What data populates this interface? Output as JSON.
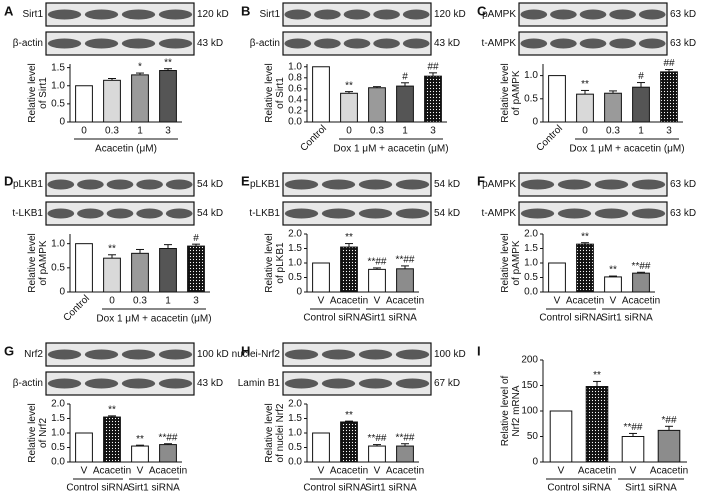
{
  "chart_data": [
    {
      "type": "bar",
      "panel": "A",
      "blots": [
        {
          "label": "Sirt1",
          "size": "120 kD"
        },
        {
          "label": "β-actin",
          "size": "43 kD"
        }
      ],
      "ylabel": [
        "Relative level",
        "of Sirt1"
      ],
      "categories": [
        "0",
        "0.3",
        "1",
        "3"
      ],
      "values": [
        1.0,
        1.15,
        1.3,
        1.42
      ],
      "errors": [
        0,
        0.05,
        0.05,
        0.05
      ],
      "sig": [
        "",
        "",
        "*",
        "**"
      ],
      "colors": [
        "#ffffff",
        "#d9d9d9",
        "#9a9a9a",
        "#555555"
      ],
      "dotted": [
        false,
        false,
        false,
        false
      ],
      "xlabel": "Acacetin (μM)",
      "ylim": [
        0,
        1.6
      ],
      "yticks": [
        0,
        0.5,
        {
          "value": 1,
          "label": "1.0"
        },
        1.5
      ]
    },
    {
      "type": "bar",
      "panel": "B",
      "blots": [
        {
          "label": "Sirt1",
          "size": "120 kD"
        },
        {
          "label": "β-actin",
          "size": "43 kD"
        }
      ],
      "ylabel": [
        "Relative level",
        "of Sirt1"
      ],
      "categories": [
        "Control",
        "0",
        "0.3",
        "1",
        "3"
      ],
      "values": [
        1.0,
        0.52,
        0.62,
        0.65,
        0.83
      ],
      "errors": [
        0,
        0.03,
        0.02,
        0.06,
        0.06
      ],
      "sig": [
        "",
        "**",
        "",
        "#",
        "##"
      ],
      "colors": [
        "#ffffff",
        "#d9d9d9",
        "#9a9a9a",
        "#555555",
        "#1a1a1a"
      ],
      "dotted": [
        false,
        false,
        false,
        false,
        true
      ],
      "xlabel": "Dox 1 μM + acacetin (μM)",
      "ylim": [
        0,
        1.05
      ],
      "yticks": [
        {
          "value": 0,
          "label": "0.0"
        },
        0.2,
        0.4,
        0.6,
        0.8,
        {
          "value": 1,
          "label": "1.0"
        }
      ]
    },
    {
      "type": "bar",
      "panel": "C",
      "blots": [
        {
          "label": "pAMPK",
          "size": "63 kD"
        },
        {
          "label": "t-AMPK",
          "size": "63 kD"
        }
      ],
      "ylabel": [
        "Relative level",
        "of pAMPK"
      ],
      "categories": [
        "Control",
        "0",
        "0.3",
        "1",
        "3"
      ],
      "values": [
        1.0,
        0.6,
        0.62,
        0.75,
        1.08
      ],
      "errors": [
        0,
        0.08,
        0.05,
        0.1,
        0.05
      ],
      "sig": [
        "",
        "**",
        "",
        "#",
        "##"
      ],
      "colors": [
        "#ffffff",
        "#d9d9d9",
        "#9a9a9a",
        "#555555",
        "#1a1a1a"
      ],
      "dotted": [
        false,
        false,
        false,
        false,
        true
      ],
      "xlabel": "Dox 1 μM + acacetin (μM)",
      "ylim": [
        0,
        1.25
      ],
      "yticks": [
        0,
        0.5,
        {
          "value": 1,
          "label": "1.0"
        }
      ]
    },
    {
      "type": "bar",
      "panel": "D",
      "blots": [
        {
          "label": "pLKB1",
          "size": "54 kD"
        },
        {
          "label": "t-LKB1",
          "size": "54 kD"
        }
      ],
      "ylabel": [
        "Relative level",
        "of pAMPK"
      ],
      "categories": [
        "Control",
        "0",
        "0.3",
        "1",
        "3"
      ],
      "values": [
        1.0,
        0.7,
        0.8,
        0.9,
        0.95
      ],
      "errors": [
        0,
        0.07,
        0.08,
        0.08,
        0.04
      ],
      "sig": [
        "",
        "**",
        "",
        "",
        "#"
      ],
      "colors": [
        "#ffffff",
        "#d9d9d9",
        "#9a9a9a",
        "#555555",
        "#1a1a1a"
      ],
      "dotted": [
        false,
        false,
        false,
        false,
        true
      ],
      "xlabel": "Dox 1 μM + acacetin (μM)",
      "ylim": [
        0,
        1.2
      ],
      "yticks": [
        0,
        0.5,
        {
          "value": 1,
          "label": "1.0"
        }
      ]
    },
    {
      "type": "bar",
      "panel": "E",
      "blots": [
        {
          "label": "pLKB1",
          "size": "54 kD"
        },
        {
          "label": "t-LKB1",
          "size": "54 kD"
        }
      ],
      "ylabel": [
        "Relative level",
        "of pLKB1"
      ],
      "categories": [
        "V",
        "Acacetin",
        "V",
        "Acacetin"
      ],
      "values": [
        1.0,
        1.55,
        0.78,
        0.8
      ],
      "errors": [
        0,
        0.12,
        0.05,
        0.1
      ],
      "sig": [
        "",
        "**",
        "**##",
        "**##"
      ],
      "colors": [
        "#ffffff",
        "#1a1a1a",
        "#ffffff",
        "#8c8c8c"
      ],
      "dotted": [
        false,
        true,
        false,
        false
      ],
      "groups": [
        "Control siRNA",
        "Sirt1 siRNA"
      ],
      "ylim": [
        0,
        2
      ],
      "yticks": [
        0,
        0.5,
        {
          "value": 1,
          "label": "1.0"
        },
        1.5,
        {
          "value": 2,
          "label": "2.0"
        }
      ]
    },
    {
      "type": "bar",
      "panel": "F",
      "blots": [
        {
          "label": "pAMPK",
          "size": "63 kD"
        },
        {
          "label": "t-AMPK",
          "size": "63 kD"
        }
      ],
      "ylabel": [
        "Relative level",
        "of pAMPK"
      ],
      "categories": [
        "V",
        "Acacetin",
        "V",
        "Acacetin"
      ],
      "values": [
        1.0,
        1.65,
        0.52,
        0.65
      ],
      "errors": [
        0,
        0.05,
        0.03,
        0.03
      ],
      "sig": [
        "",
        "**",
        "**",
        "**##"
      ],
      "colors": [
        "#ffffff",
        "#1a1a1a",
        "#ffffff",
        "#8c8c8c"
      ],
      "dotted": [
        false,
        true,
        false,
        false
      ],
      "groups": [
        "Control siRNA",
        "Sirt1 siRNA"
      ],
      "ylim": [
        0,
        2
      ],
      "yticks": [
        {
          "value": 0,
          "label": "0.0"
        },
        0.5,
        {
          "value": 1,
          "label": "1.0"
        },
        1.5,
        {
          "value": 2,
          "label": "2.0"
        }
      ]
    },
    {
      "type": "bar",
      "panel": "G",
      "blots": [
        {
          "label": "Nrf2",
          "size": "100 kD"
        },
        {
          "label": "β-actin",
          "size": "43 kD"
        }
      ],
      "ylabel": [
        "Relative level",
        "of Nrf2"
      ],
      "categories": [
        "V",
        "Acacetin",
        "V",
        "Acacetin"
      ],
      "values": [
        1.0,
        1.55,
        0.55,
        0.6
      ],
      "errors": [
        0,
        0.04,
        0.03,
        0.03
      ],
      "sig": [
        "",
        "**",
        "**",
        "**##"
      ],
      "colors": [
        "#ffffff",
        "#1a1a1a",
        "#ffffff",
        "#8c8c8c"
      ],
      "dotted": [
        false,
        true,
        false,
        false
      ],
      "groups": [
        "Control siRNA",
        "Sirt1 siRNA"
      ],
      "ylim": [
        0,
        2
      ],
      "yticks": [
        {
          "value": 0,
          "label": "0.0"
        },
        0.5,
        {
          "value": 1,
          "label": "1.0"
        },
        1.5,
        {
          "value": 2,
          "label": "2.0"
        }
      ]
    },
    {
      "type": "bar",
      "panel": "H",
      "blots": [
        {
          "label": "nuclei-Nrf2",
          "size": "100 kD"
        },
        {
          "label": "Lamin B1",
          "size": "67 kD"
        }
      ],
      "ylabel": [
        "Relative level",
        "of nuclei Nrf2"
      ],
      "categories": [
        "V",
        "Acacetin",
        "V",
        "Acacetin"
      ],
      "values": [
        1.0,
        1.38,
        0.55,
        0.55
      ],
      "errors": [
        0,
        0.03,
        0.05,
        0.08
      ],
      "sig": [
        "",
        "**",
        "**##",
        "**##"
      ],
      "colors": [
        "#ffffff",
        "#1a1a1a",
        "#ffffff",
        "#8c8c8c"
      ],
      "dotted": [
        false,
        true,
        false,
        false
      ],
      "groups": [
        "Control siRNA",
        "Sirt1 siRNA"
      ],
      "ylim": [
        0,
        2
      ],
      "yticks": [
        {
          "value": 0,
          "label": "0.0"
        },
        0.5,
        {
          "value": 1,
          "label": "1.0"
        },
        1.5,
        {
          "value": 2,
          "label": "2.0"
        }
      ]
    },
    {
      "type": "bar",
      "panel": "I",
      "ylabel": [
        "Relative level of",
        "Nrf2 mRNA"
      ],
      "categories": [
        "V",
        "Acacetin",
        "V",
        "Acacetin"
      ],
      "values": [
        100,
        148,
        50,
        62
      ],
      "errors": [
        0,
        10,
        6,
        8
      ],
      "sig": [
        "",
        "**",
        "**##",
        "*##"
      ],
      "colors": [
        "#ffffff",
        "#1a1a1a",
        "#ffffff",
        "#8c8c8c"
      ],
      "dotted": [
        false,
        true,
        false,
        false
      ],
      "groups": [
        "Control siRNA",
        "Sirt1 siRNA"
      ],
      "ylim": [
        0,
        200
      ],
      "yticks": [
        0,
        50,
        100,
        150,
        200
      ]
    }
  ]
}
